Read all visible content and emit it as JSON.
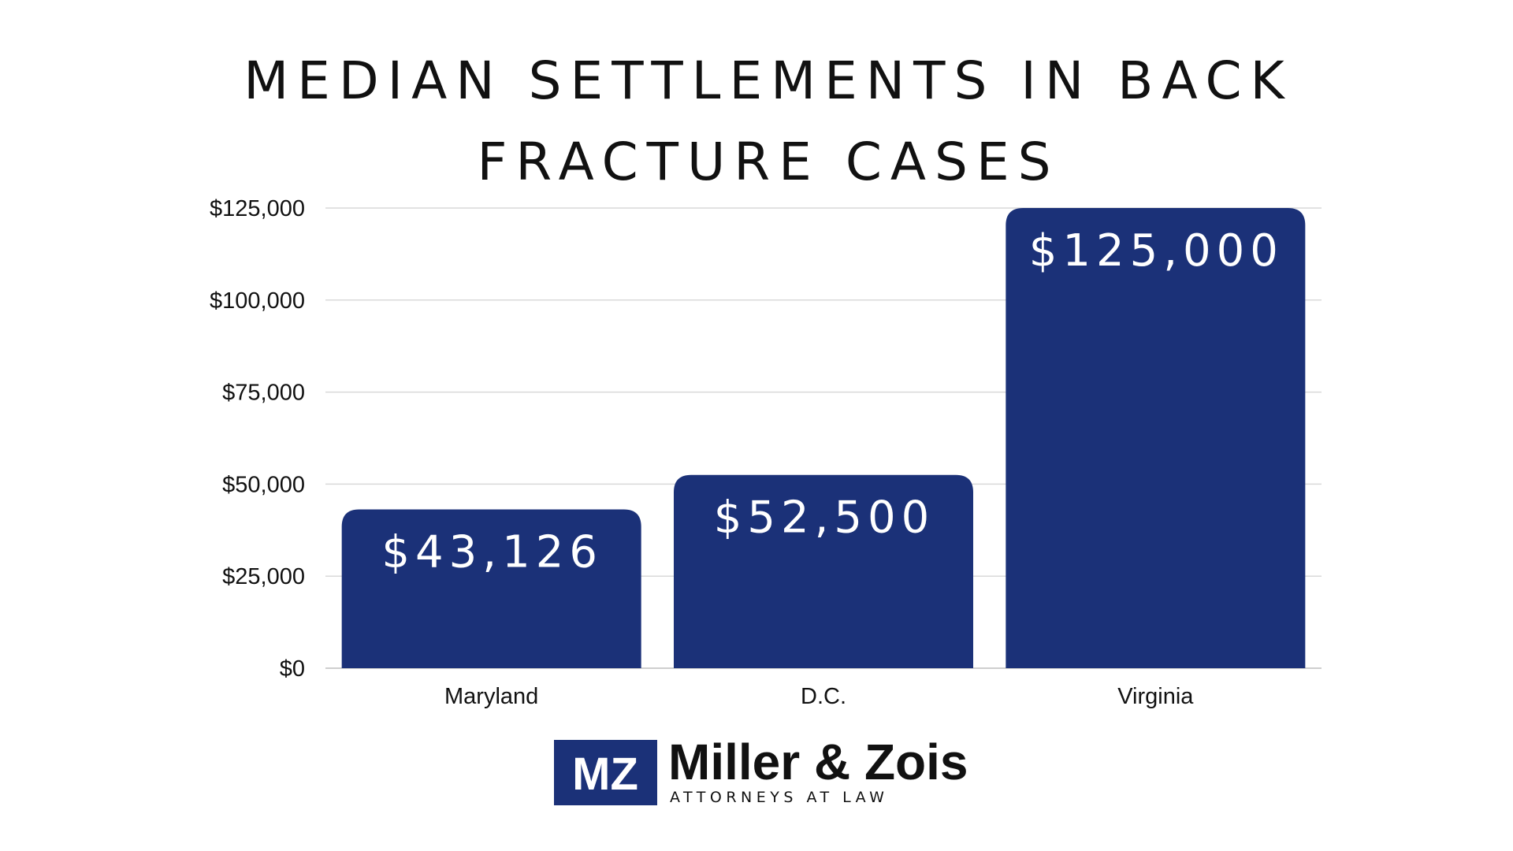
{
  "chart_data": {
    "type": "bar",
    "title_lines": [
      "MEDIAN SETTLEMENTS IN BACK",
      "FRACTURE CASES"
    ],
    "categories": [
      "Maryland",
      "D.C.",
      "Virginia"
    ],
    "values": [
      43126,
      52500,
      125000
    ],
    "value_labels": [
      "$43,126",
      "$52,500",
      "$125,000"
    ],
    "ylim": [
      0,
      125000
    ],
    "yticks": [
      0,
      25000,
      50000,
      75000,
      100000,
      125000
    ],
    "ytick_labels": [
      "$0",
      "$25,000",
      "$50,000",
      "$75,000",
      "$100,000",
      "$125,000"
    ],
    "grid": true,
    "bar_color": "#1b3178",
    "value_label_color": "#ffffff"
  },
  "logo": {
    "mark": "MZ",
    "name": "Miller & Zois",
    "tagline": "ATTORNEYS AT LAW",
    "color": "#1b3178"
  }
}
